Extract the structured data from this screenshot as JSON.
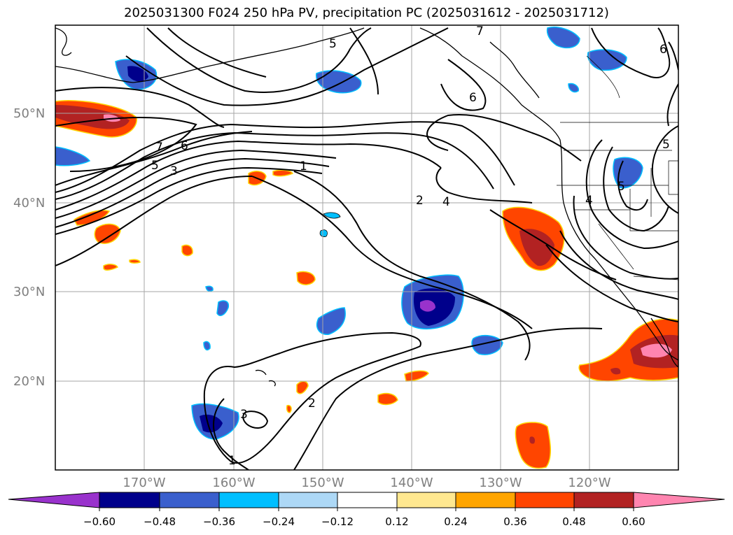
{
  "title": "2025031300 F024 250 hPa PV, precipitation PC (2025031612 - 2025031712)",
  "map": {
    "lat_labels": [
      "50°N",
      "40°N",
      "30°N",
      "20°N"
    ],
    "lon_labels": [
      "170°W",
      "160°W",
      "150°W",
      "140°W",
      "130°W",
      "120°W"
    ],
    "contour_labels": [
      "5",
      "6",
      "7",
      "7",
      "6",
      "5",
      "3",
      "1",
      "2",
      "4",
      "6",
      "5",
      "4",
      "5",
      "2",
      "3",
      "1"
    ]
  },
  "colorbar": {
    "ticks": [
      "−0.60",
      "−0.48",
      "−0.36",
      "−0.24",
      "−0.12",
      "0.12",
      "0.24",
      "0.36",
      "0.48",
      "0.60"
    ],
    "colors": [
      "#9932cc",
      "#00008b",
      "#3a5fcd",
      "#00bfff",
      "#add8f6",
      "#ffffff",
      "#ffe890",
      "#ffa500",
      "#ff4500",
      "#b22222",
      "#ff85b0"
    ]
  }
}
